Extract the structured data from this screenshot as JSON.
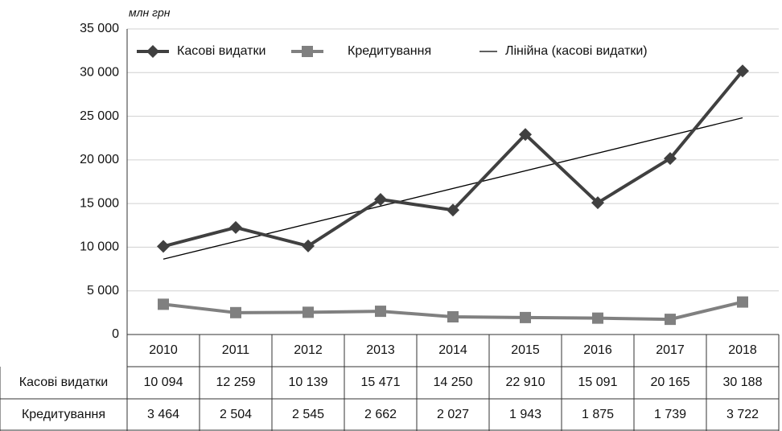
{
  "chart_data": {
    "type": "line",
    "y_label": "млн грн",
    "categories": [
      "2010",
      "2011",
      "2012",
      "2013",
      "2014",
      "2015",
      "2016",
      "2017",
      "2018"
    ],
    "series": [
      {
        "name": "Касові видатки",
        "color": "#404040",
        "marker": "diamond",
        "values": [
          10094,
          12259,
          10139,
          15471,
          14250,
          22910,
          15091,
          20165,
          30188
        ],
        "value_labels": [
          "10 094",
          "12 259",
          "10 139",
          "15 471",
          "14 250",
          "22 910",
          "15 091",
          "20 165",
          "30 188"
        ]
      },
      {
        "name": "Кредитування",
        "color": "#808080",
        "marker": "square",
        "values": [
          3464,
          2504,
          2545,
          2662,
          2027,
          1943,
          1875,
          1739,
          3722
        ],
        "value_labels": [
          "3 464",
          "2 504",
          "2 545",
          "2 662",
          "2 027",
          "1 943",
          "1 875",
          "1 739",
          "3 722"
        ]
      }
    ],
    "trendline": {
      "name": "Лінійна (касові видатки)",
      "color": "#000000"
    },
    "ylim": [
      0,
      35000
    ],
    "yticks": [
      0,
      {
        "value": 5000,
        "label": "5 000"
      },
      {
        "value": 10000,
        "label": "10 000"
      },
      {
        "value": 15000,
        "label": "15 000"
      },
      {
        "value": 20000,
        "label": "20 000"
      },
      {
        "value": 25000,
        "label": "25 000"
      },
      {
        "value": 30000,
        "label": "30 000"
      },
      {
        "value": 35000,
        "label": "35 000"
      }
    ],
    "grid": true,
    "legend": "top"
  }
}
